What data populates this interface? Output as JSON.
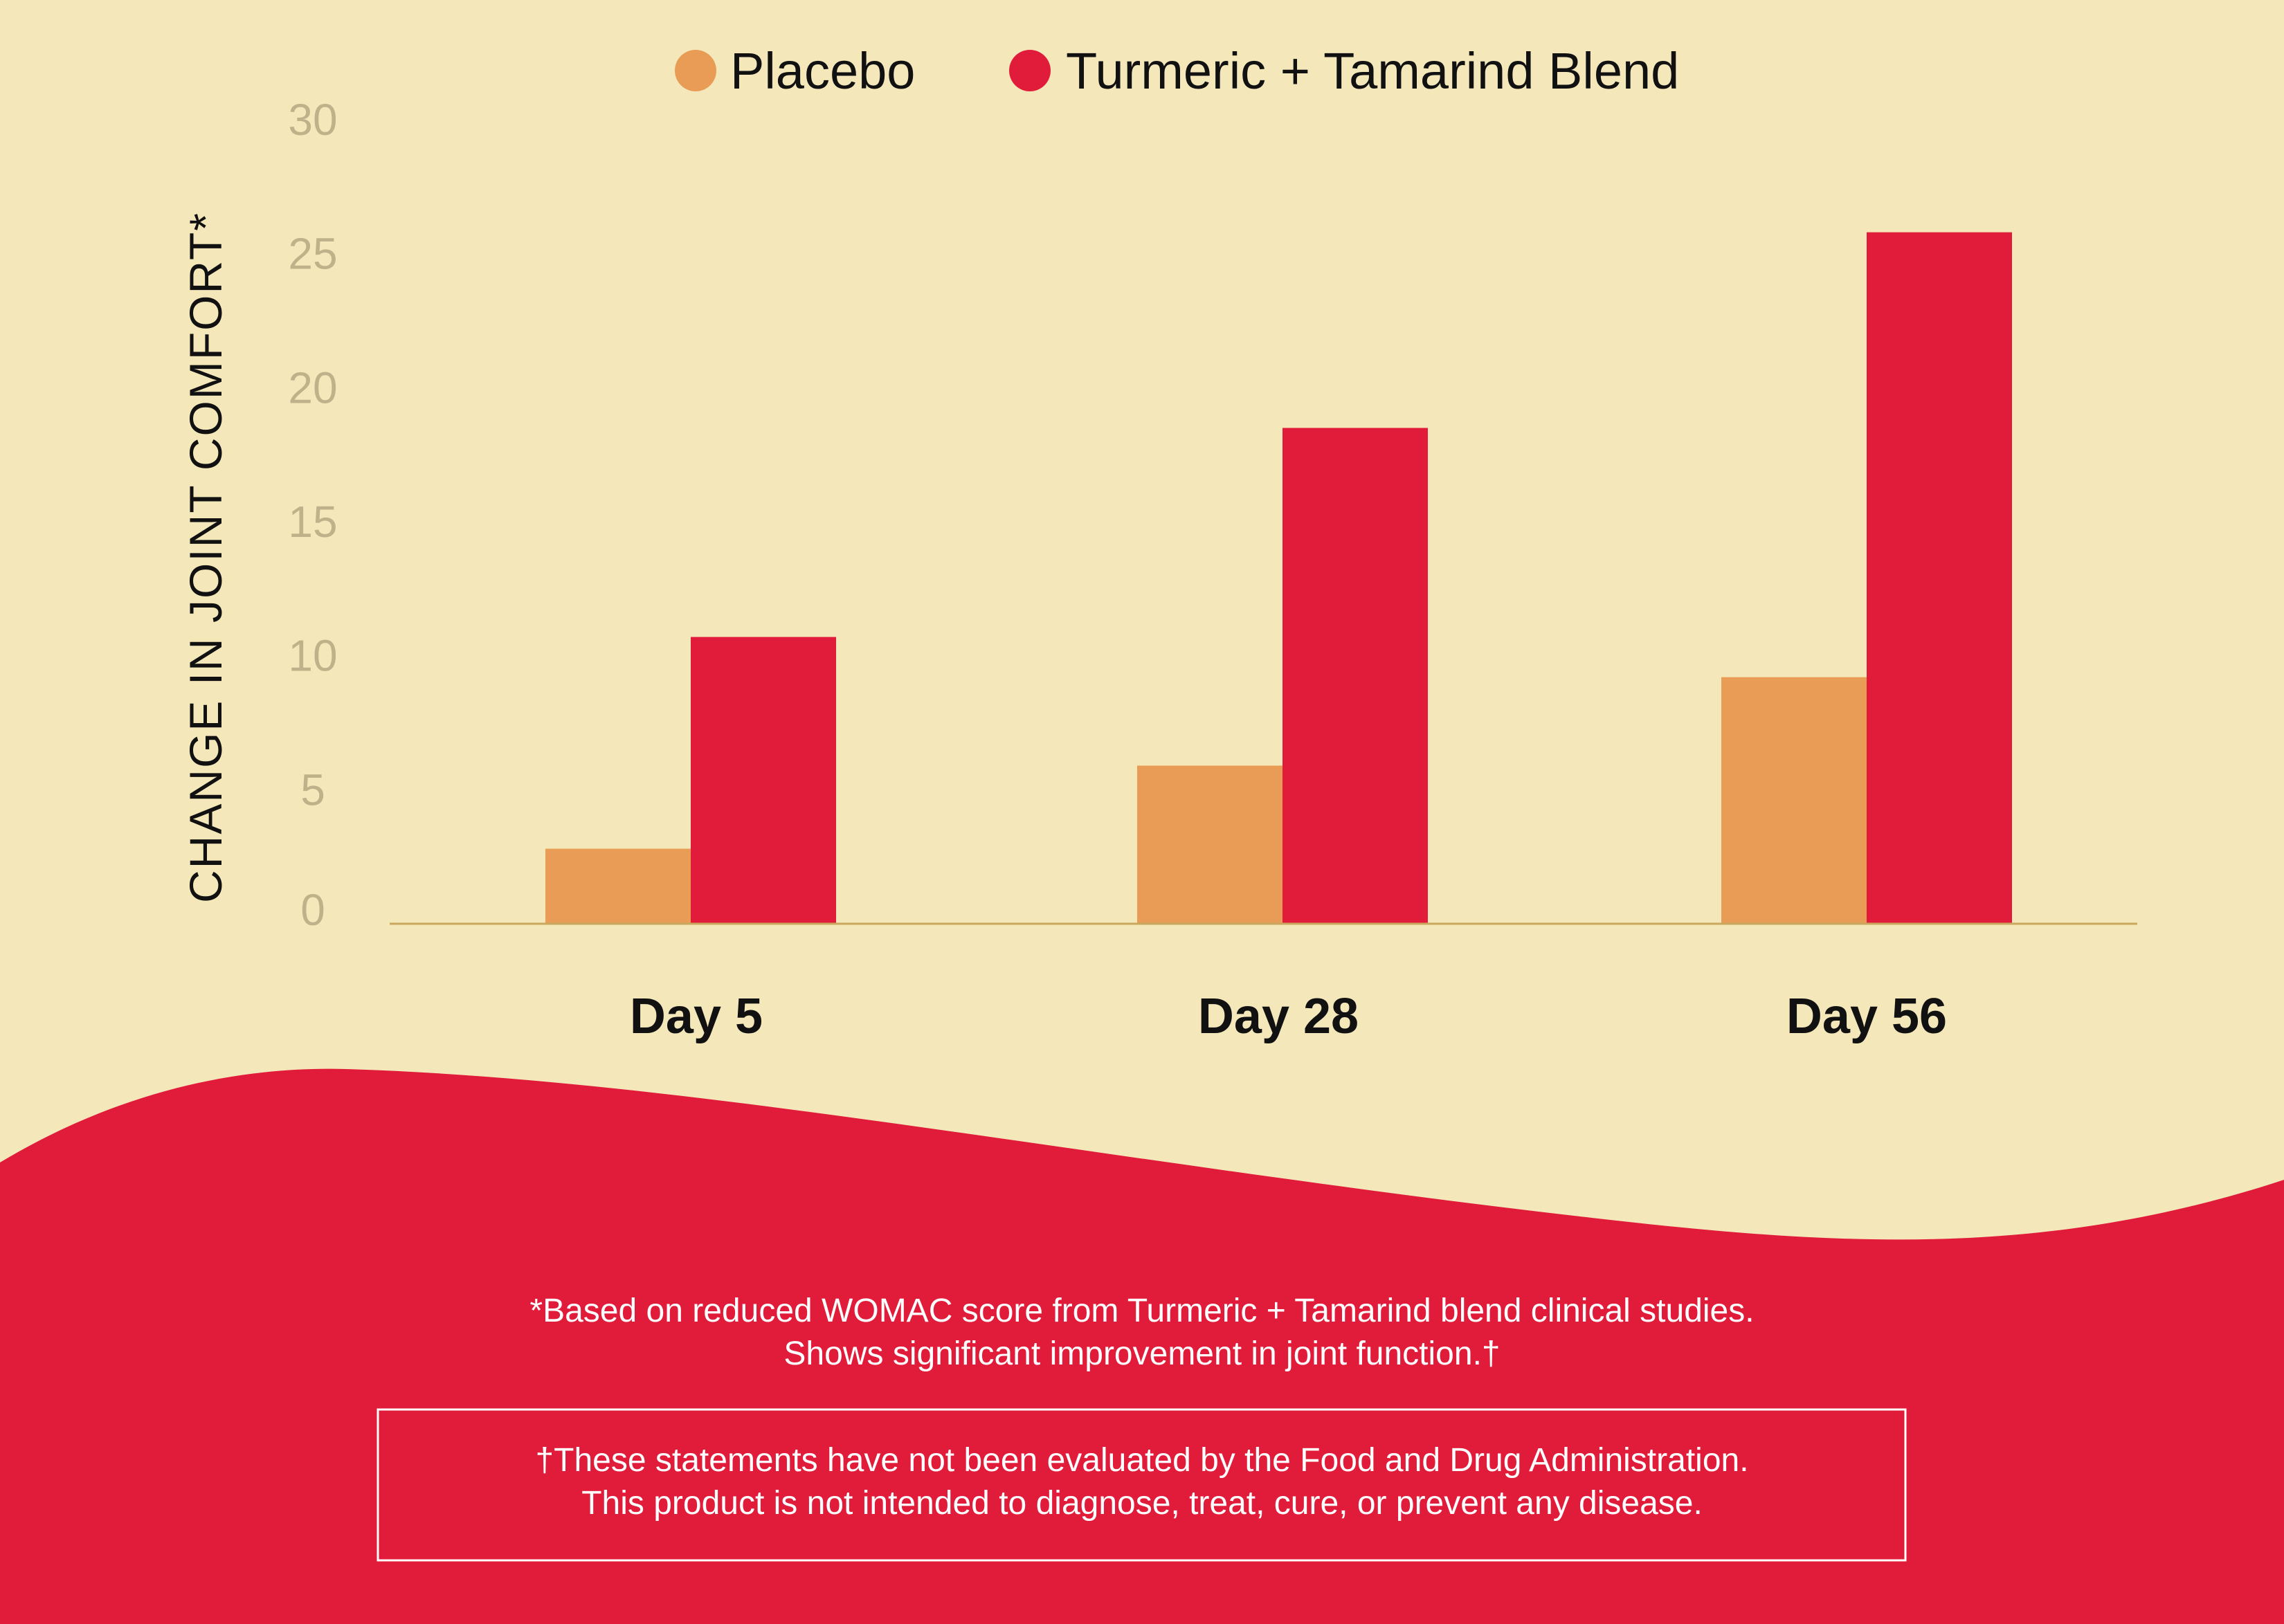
{
  "chart_data": {
    "type": "bar",
    "categories": [
      "Day 5",
      "Day 28",
      "Day 56"
    ],
    "series": [
      {
        "name": "Placebo",
        "color": "#e89c55",
        "values": [
          2.8,
          5.9,
          9.2
        ]
      },
      {
        "name": "Turmeric + Tamarind Blend",
        "color": "#e11c3a",
        "values": [
          10.7,
          18.5,
          25.8
        ]
      }
    ],
    "ylabel": "CHANGE IN JOINT COMFORT*",
    "xlabel": "",
    "ylim": [
      0,
      30
    ],
    "yticks": [
      "0",
      "5",
      "10",
      "15",
      "20",
      "25",
      "30"
    ],
    "grid": false,
    "legend_position": "top"
  },
  "footnote": {
    "line1": "*Based on reduced WOMAC score from Turmeric + Tamarind blend clinical studies.",
    "line2": "Shows significant improvement in joint function.†"
  },
  "disclaimer": {
    "line1": "†These statements have not been evaluated by the Food and Drug Administration.",
    "line2": "This product is not intended to diagnose, treat, cure, or prevent any disease."
  },
  "colors": {
    "background": "#f4e8bb",
    "accent_red": "#e11c3a",
    "baseline": "#c9a85e",
    "tick_label": "#bfb28a"
  }
}
